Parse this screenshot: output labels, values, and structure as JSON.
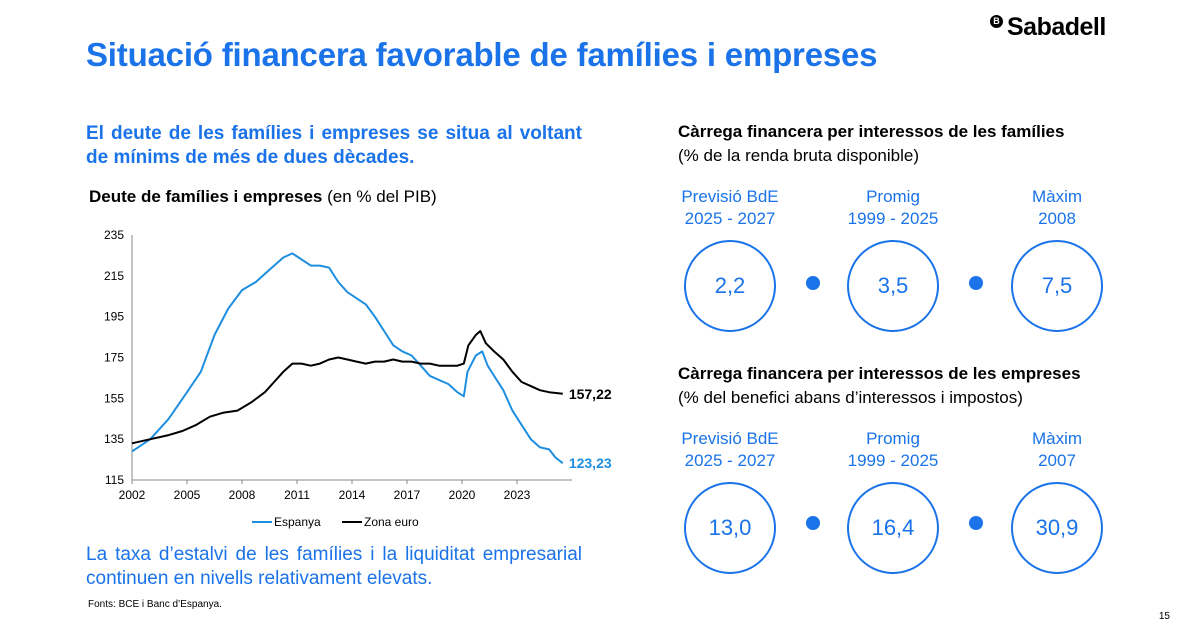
{
  "title": "Situació financera favorable de famílies i empreses",
  "logo": {
    "text": "Sabadell",
    "mark": "B"
  },
  "left": {
    "intro": "El deute de les famílies i empreses se situa al voltant de mínims de més de dues dècades.",
    "chart_title_bold": "Deute de famílies i empreses",
    "chart_title_rest": " (en % del PIB)",
    "outro": "La taxa d’estalvi de les famílies i la liquiditat empresarial continuen en nivells relativament elevats.",
    "source": "Fonts: BCE i Banc d’Espanya."
  },
  "page_number": "15",
  "colors": {
    "accent": "#1a73e8",
    "espanya": "#1e8fe0",
    "zona_euro": "#000000"
  },
  "chart_data": {
    "type": "line",
    "title": "Deute de famílies i empreses (en % del PIB)",
    "ylim": [
      115,
      235
    ],
    "yticks": [
      "235",
      "215",
      "195",
      "175",
      "155",
      "135",
      "115"
    ],
    "xlim": [
      2002,
      2026
    ],
    "xticks": [
      "2002",
      "2005",
      "2008",
      "2011",
      "2014",
      "2017",
      "2020",
      "2023"
    ],
    "grid": false,
    "legend": "bottom",
    "series": [
      {
        "name": "Espanya",
        "color": "#1e8fe0",
        "end_label": "123,23",
        "points": [
          [
            2002,
            129
          ],
          [
            2003,
            135
          ],
          [
            2004,
            145
          ],
          [
            2005,
            158
          ],
          [
            2005.75,
            168
          ],
          [
            2006.5,
            186
          ],
          [
            2007.25,
            199
          ],
          [
            2008,
            208
          ],
          [
            2008.75,
            212
          ],
          [
            2009.5,
            218
          ],
          [
            2010.25,
            224
          ],
          [
            2010.75,
            226
          ],
          [
            2011.25,
            223
          ],
          [
            2011.75,
            220
          ],
          [
            2012.25,
            220
          ],
          [
            2012.75,
            219
          ],
          [
            2013.25,
            212
          ],
          [
            2013.75,
            207
          ],
          [
            2014.25,
            204
          ],
          [
            2014.75,
            201
          ],
          [
            2015.25,
            195
          ],
          [
            2015.75,
            188
          ],
          [
            2016.25,
            181
          ],
          [
            2016.75,
            178
          ],
          [
            2017.25,
            176
          ],
          [
            2017.75,
            171
          ],
          [
            2018.25,
            166
          ],
          [
            2018.75,
            164
          ],
          [
            2019.25,
            162
          ],
          [
            2019.75,
            158
          ],
          [
            2020.1,
            156
          ],
          [
            2020.3,
            168
          ],
          [
            2020.75,
            176
          ],
          [
            2021.1,
            178
          ],
          [
            2021.4,
            171
          ],
          [
            2021.75,
            166
          ],
          [
            2022.25,
            159
          ],
          [
            2022.75,
            149
          ],
          [
            2023.25,
            142
          ],
          [
            2023.75,
            135
          ],
          [
            2024.25,
            131
          ],
          [
            2024.75,
            130
          ],
          [
            2025.1,
            126
          ],
          [
            2025.5,
            123.23
          ]
        ]
      },
      {
        "name": "Zona euro",
        "color": "#000000",
        "end_label": "157,22",
        "points": [
          [
            2002,
            133
          ],
          [
            2003,
            135
          ],
          [
            2004,
            137
          ],
          [
            2004.75,
            139
          ],
          [
            2005.5,
            142
          ],
          [
            2006.25,
            146
          ],
          [
            2007,
            148
          ],
          [
            2007.75,
            149
          ],
          [
            2008.5,
            153
          ],
          [
            2009.25,
            158
          ],
          [
            2009.75,
            163
          ],
          [
            2010.25,
            168
          ],
          [
            2010.75,
            172
          ],
          [
            2011.25,
            172
          ],
          [
            2011.75,
            171
          ],
          [
            2012.25,
            172
          ],
          [
            2012.75,
            174
          ],
          [
            2013.25,
            175
          ],
          [
            2013.75,
            174
          ],
          [
            2014.25,
            173
          ],
          [
            2014.75,
            172
          ],
          [
            2015.25,
            173
          ],
          [
            2015.75,
            173
          ],
          [
            2016.25,
            174
          ],
          [
            2016.75,
            173
          ],
          [
            2017.25,
            173
          ],
          [
            2017.75,
            172
          ],
          [
            2018.25,
            172
          ],
          [
            2018.75,
            171
          ],
          [
            2019.25,
            171
          ],
          [
            2019.75,
            171
          ],
          [
            2020.1,
            172
          ],
          [
            2020.35,
            181
          ],
          [
            2020.75,
            186
          ],
          [
            2021,
            188
          ],
          [
            2021.3,
            182
          ],
          [
            2021.75,
            178
          ],
          [
            2022.25,
            174
          ],
          [
            2022.75,
            168
          ],
          [
            2023.25,
            163
          ],
          [
            2023.75,
            161
          ],
          [
            2024.25,
            159
          ],
          [
            2024.75,
            158
          ],
          [
            2025.5,
            157.22
          ]
        ]
      }
    ]
  },
  "right": {
    "families": {
      "heading": "Càrrega financera per interessos de les famílies",
      "subheading": "(% de la renda bruta disponible)",
      "metrics": [
        {
          "label1": "Previsió BdE",
          "label2": "2025 - 2027",
          "value": "2,2"
        },
        {
          "label1": "Promig",
          "label2": "1999 - 2025",
          "value": "3,5"
        },
        {
          "label1": "Màxim",
          "label2": "2008",
          "value": "7,5"
        }
      ]
    },
    "empreses": {
      "heading": "Càrrega financera per interessos de les empreses",
      "subheading": "(% del benefici abans d’interessos i impostos)",
      "metrics": [
        {
          "label1": "Previsió BdE",
          "label2": "2025 - 2027",
          "value": "13,0"
        },
        {
          "label1": "Promig",
          "label2": "1999 - 2025",
          "value": "16,4"
        },
        {
          "label1": "Màxim",
          "label2": "2007",
          "value": "30,9"
        }
      ]
    }
  }
}
